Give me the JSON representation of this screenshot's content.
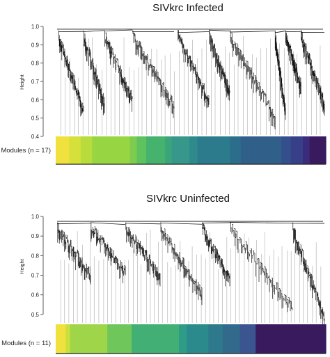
{
  "chart_data": [
    {
      "type": "dendrogram",
      "title": "SIVkrc Infected",
      "ylabel": "Height",
      "ylim": [
        0.4,
        1.0
      ],
      "yticks": [
        "0.4",
        "0.5",
        "0.6",
        "0.7",
        "0.8",
        "0.9",
        "1.0"
      ],
      "modules_label": "Modules (n = 17)",
      "module_count": 17,
      "module_colors": [
        "#f1e13f",
        "#d5e03a",
        "#b7dc3c",
        "#98d542",
        "#7dcc4e",
        "#5ec35f",
        "#45b26d",
        "#3aa47a",
        "#36978a",
        "#2f8a8c",
        "#2b7b8c",
        "#2c6d8b",
        "#30608a",
        "#34508c",
        "#363f87",
        "#3b2b7b",
        "#3a1a5f"
      ],
      "module_widths": [
        1.0,
        0.85,
        0.85,
        2.8,
        0.5,
        0.7,
        1.4,
        0.5,
        1.3,
        0.6,
        2.4,
        0.8,
        3.0,
        0.7,
        0.9,
        0.5,
        1.2
      ]
    },
    {
      "type": "dendrogram",
      "title": "SIVkrc Uninfected",
      "ylabel": "Height",
      "ylim": [
        0.45,
        1.0
      ],
      "yticks": [
        "0.5",
        "0.6",
        "0.7",
        "0.8",
        "0.9",
        "1.0"
      ],
      "modules_label": "Modules (n = 11)",
      "module_count": 11,
      "module_colors": [
        "#f1e13f",
        "#c9df3c",
        "#9fd548",
        "#6fc65a",
        "#42af74",
        "#2f9c88",
        "#2b8a8b",
        "#2e7a8c",
        "#326a8c",
        "#3a5590",
        "#3a1a5f"
      ],
      "module_widths": [
        0.7,
        0.3,
        2.6,
        1.7,
        3.3,
        0.55,
        1.5,
        1.0,
        1.2,
        1.1,
        4.9
      ]
    }
  ]
}
